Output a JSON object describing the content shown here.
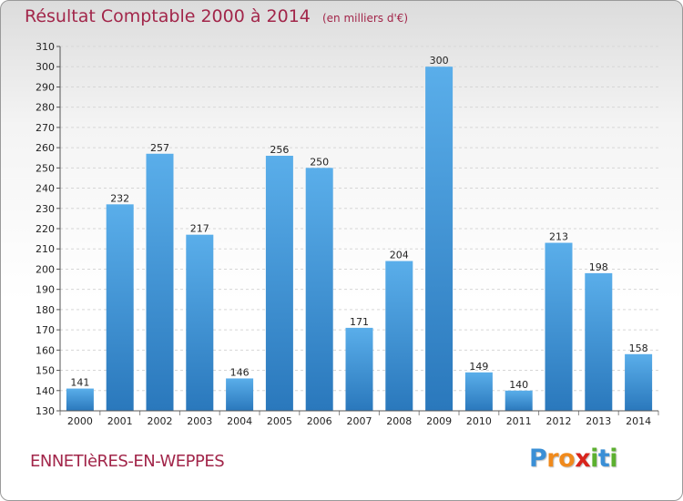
{
  "chart_data": {
    "type": "bar",
    "title": "Résultat Comptable 2000 à 2014",
    "subtitle": "(en milliers d'€)",
    "xlabel": "",
    "ylabel": "",
    "categories": [
      "2000",
      "2001",
      "2002",
      "2003",
      "2004",
      "2005",
      "2006",
      "2007",
      "2008",
      "2009",
      "2010",
      "2011",
      "2012",
      "2013",
      "2014"
    ],
    "values": [
      141,
      232,
      257,
      217,
      146,
      256,
      250,
      171,
      204,
      300,
      149,
      140,
      213,
      198,
      158
    ],
    "ylim": [
      130,
      310
    ],
    "ystep": 10,
    "grid": true,
    "bar_color_top": "#5aaeea",
    "bar_color_bottom": "#2a78bc"
  },
  "footer": {
    "town": "ENNETIèRES-EN-WEPPES",
    "logo_letters": [
      {
        "ch": "P",
        "color": "#3a8fd6"
      },
      {
        "ch": "r",
        "color": "#f08a1c"
      },
      {
        "ch": "o",
        "color": "#f08a1c"
      },
      {
        "ch": "x",
        "color": "#d8241c"
      },
      {
        "ch": "i",
        "color": "#5cb030"
      },
      {
        "ch": "t",
        "color": "#3a8fd6"
      },
      {
        "ch": "i",
        "color": "#5cb030"
      }
    ]
  }
}
